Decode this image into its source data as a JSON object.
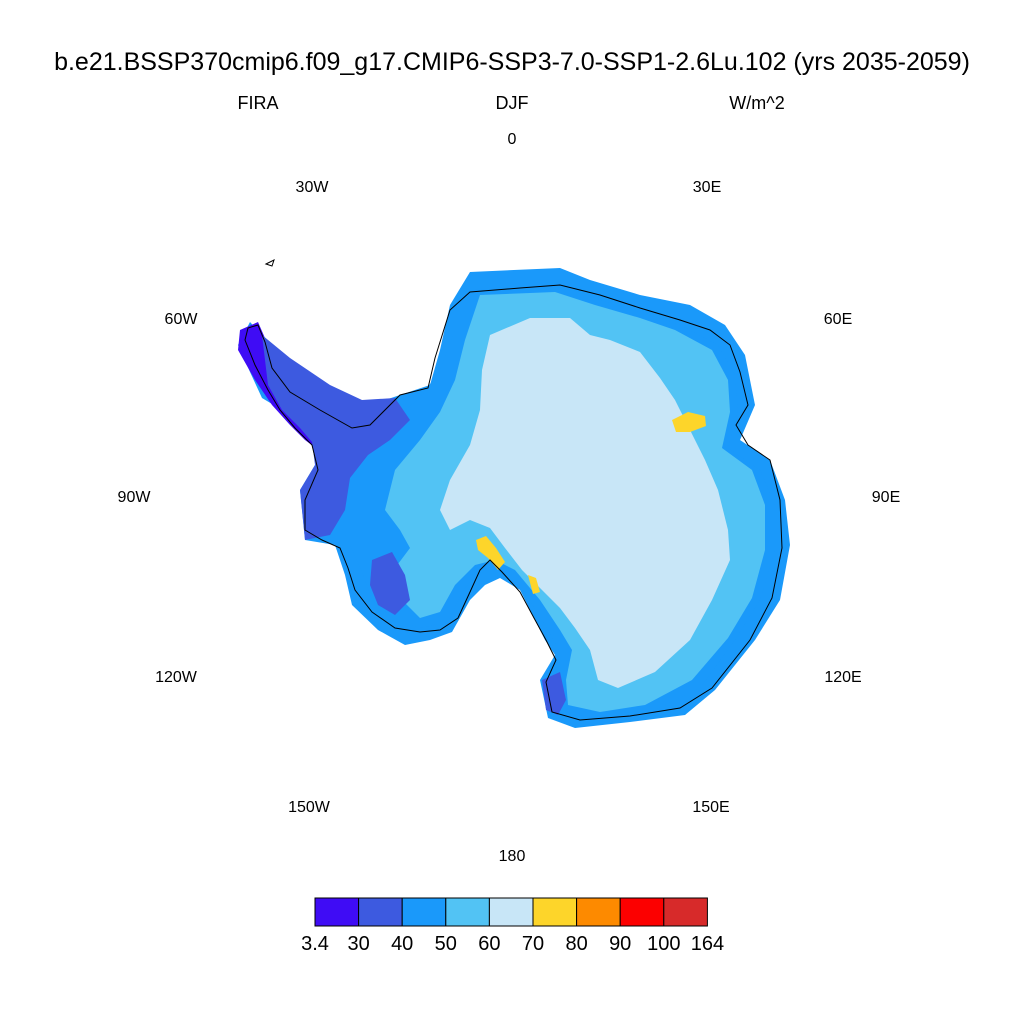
{
  "title": "b.e21.BSSP370cmip6.f09_g17.CMIP6-SSP3-7.0-SSP1-2.6Lu.102 (yrs 2035-2059)",
  "variable": "FIRA",
  "season": "DJF",
  "units": "W/m^2",
  "longitude_labels": [
    "0",
    "30E",
    "60E",
    "90E",
    "120E",
    "150E",
    "180",
    "150W",
    "120W",
    "90W",
    "60W",
    "30W"
  ],
  "colorbar": {
    "tick_labels": [
      "3.4",
      "30",
      "40",
      "50",
      "60",
      "70",
      "80",
      "90",
      "100",
      "164"
    ],
    "colors": [
      "#3f0cf5",
      "#3d5ae0",
      "#1a99fa",
      "#52c3f4",
      "#c8e6f7",
      "#fdd52a",
      "#fd8a00",
      "#fc0000",
      "#d72a2a"
    ]
  },
  "map": {
    "projection": "south-polar-stereographic",
    "region": "Antarctica",
    "colors": {
      "interior": "#c8e6f7",
      "plateau_edge": "#52c3f4",
      "coastal": "#1a99fa",
      "peninsula_mid": "#3d5ae0",
      "peninsula_low": "#3f0cf5",
      "warm_patch": "#fdd52a"
    }
  }
}
